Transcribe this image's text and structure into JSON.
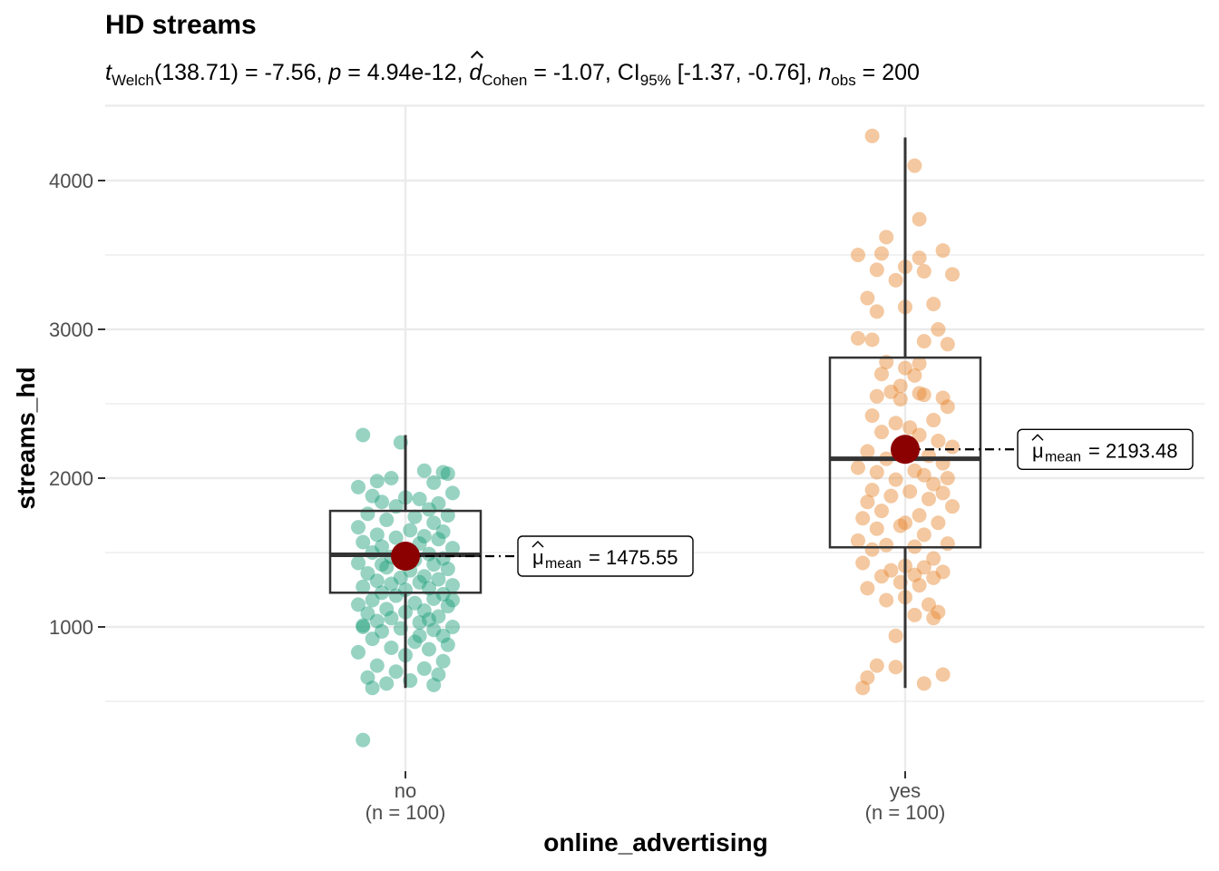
{
  "chart_data": {
    "type": "box",
    "title": "HD streams",
    "subtitle": {
      "t_label": "t",
      "t_sub": "Welch",
      "t_rest": "(138.71) = -7.56, ",
      "p_label": "p",
      "p_rest": " = 4.94e-12, ",
      "d_label": "d",
      "d_sub": "Cohen",
      "d_rest": " = -1.07, CI",
      "ci_sub": "95%",
      "ci_rest": " [-1.37, -0.76], ",
      "n_label": "n",
      "n_sub": "obs",
      "n_rest": " = 200"
    },
    "xlabel": "online_advertising",
    "ylabel": "streams_hd",
    "ylim": [
      0,
      4400
    ],
    "yticks": [
      1000,
      2000,
      3000,
      4000
    ],
    "categories": [
      "no",
      "yes"
    ],
    "category_counts": [
      "(n = 100)",
      "(n = 100)"
    ],
    "colors": {
      "no": "#1b9e77",
      "yes": "#e7852d",
      "mean_point": "#8b0000"
    },
    "groups": [
      {
        "name": "no",
        "box": {
          "q1": 1230,
          "median": 1485,
          "q3": 1780,
          "whisker_low": 590,
          "whisker_high": 2290
        },
        "mean": 1475.55,
        "mean_text": "= 1475.55",
        "points": [
          [
            -0.09,
            2290
          ],
          [
            -0.01,
            2240
          ],
          [
            0.08,
            2040
          ],
          [
            0.04,
            2050
          ],
          [
            0.09,
            2030
          ],
          [
            -0.03,
            2000
          ],
          [
            -0.06,
            1980
          ],
          [
            0.06,
            1970
          ],
          [
            -0.1,
            1940
          ],
          [
            0.1,
            1900
          ],
          [
            -0.07,
            1880
          ],
          [
            0.0,
            1870
          ],
          [
            0.03,
            1860
          ],
          [
            -0.05,
            1840
          ],
          [
            0.07,
            1830
          ],
          [
            -0.02,
            1810
          ],
          [
            0.05,
            1790
          ],
          [
            -0.08,
            1760
          ],
          [
            0.09,
            1750
          ],
          [
            0.02,
            1740
          ],
          [
            -0.04,
            1720
          ],
          [
            0.06,
            1700
          ],
          [
            -0.1,
            1670
          ],
          [
            0.01,
            1650
          ],
          [
            0.08,
            1640
          ],
          [
            -0.06,
            1620
          ],
          [
            0.04,
            1610
          ],
          [
            -0.02,
            1600
          ],
          [
            0.07,
            1590
          ],
          [
            -0.09,
            1570
          ],
          [
            0.03,
            1560
          ],
          [
            -0.05,
            1540
          ],
          [
            0.1,
            1530
          ],
          [
            0.0,
            1520
          ],
          [
            -0.07,
            1500
          ],
          [
            0.05,
            1490
          ],
          [
            -0.03,
            1470
          ],
          [
            0.08,
            1460
          ],
          [
            0.02,
            1450
          ],
          [
            -0.1,
            1430
          ],
          [
            0.06,
            1420
          ],
          [
            -0.04,
            1400
          ],
          [
            0.09,
            1390
          ],
          [
            0.01,
            1380
          ],
          [
            -0.08,
            1360
          ],
          [
            0.04,
            1340
          ],
          [
            -0.01,
            1330
          ],
          [
            0.07,
            1320
          ],
          [
            -0.06,
            1310
          ],
          [
            0.03,
            1300
          ],
          [
            -0.03,
            1290
          ],
          [
            0.1,
            1280
          ],
          [
            -0.09,
            1270
          ],
          [
            0.05,
            1260
          ],
          [
            0.0,
            1250
          ],
          [
            -0.05,
            1230
          ],
          [
            0.08,
            1220
          ],
          [
            -0.02,
            1210
          ],
          [
            0.06,
            1190
          ],
          [
            -0.07,
            1180
          ],
          [
            0.02,
            1160
          ],
          [
            -0.1,
            1150
          ],
          [
            0.09,
            1140
          ],
          [
            -0.04,
            1120
          ],
          [
            0.04,
            1110
          ],
          [
            0.0,
            1100
          ],
          [
            -0.08,
            1090
          ],
          [
            0.07,
            1070
          ],
          [
            -0.03,
            1060
          ],
          [
            0.05,
            1050
          ],
          [
            -0.06,
            1040
          ],
          [
            0.03,
            1030
          ],
          [
            -0.09,
            1010
          ],
          [
            0.1,
            1000
          ],
          [
            -0.01,
            990
          ],
          [
            0.06,
            980
          ],
          [
            -0.05,
            970
          ],
          [
            0.08,
            940
          ],
          [
            -0.07,
            920
          ],
          [
            0.02,
            900
          ],
          [
            0.09,
            880
          ],
          [
            -0.03,
            860
          ],
          [
            0.05,
            850
          ],
          [
            -0.1,
            830
          ],
          [
            0.0,
            810
          ],
          [
            0.08,
            770
          ],
          [
            -0.06,
            740
          ],
          [
            0.04,
            720
          ],
          [
            -0.02,
            700
          ],
          [
            0.07,
            680
          ],
          [
            -0.08,
            660
          ],
          [
            0.01,
            640
          ],
          [
            -0.04,
            620
          ],
          [
            0.06,
            610
          ],
          [
            -0.07,
            590
          ],
          [
            0.03,
            940
          ],
          [
            -0.09,
            1000
          ],
          [
            0.1,
            1180
          ],
          [
            -0.05,
            1420
          ],
          [
            -0.09,
            240
          ]
        ]
      },
      {
        "name": "yes",
        "box": {
          "q1": 1535,
          "median": 2130,
          "q3": 2810,
          "whisker_low": 590,
          "whisker_high": 4290
        },
        "mean": 2193.48,
        "mean_text": "= 2193.48",
        "points": [
          [
            -0.07,
            4300
          ],
          [
            0.02,
            4100
          ],
          [
            0.03,
            3740
          ],
          [
            -0.04,
            3620
          ],
          [
            0.08,
            3530
          ],
          [
            -0.05,
            3510
          ],
          [
            -0.1,
            3500
          ],
          [
            0.03,
            3480
          ],
          [
            0.0,
            3420
          ],
          [
            -0.06,
            3400
          ],
          [
            0.04,
            3390
          ],
          [
            0.1,
            3370
          ],
          [
            -0.02,
            3330
          ],
          [
            -0.08,
            3210
          ],
          [
            0.06,
            3170
          ],
          [
            0.0,
            3150
          ],
          [
            -0.06,
            3120
          ],
          [
            0.07,
            3000
          ],
          [
            0.09,
            2900
          ],
          [
            -0.1,
            2940
          ],
          [
            -0.07,
            2930
          ],
          [
            0.04,
            2920
          ],
          [
            -0.04,
            2780
          ],
          [
            0.0,
            2740
          ],
          [
            0.03,
            2770
          ],
          [
            -0.05,
            2700
          ],
          [
            0.02,
            2690
          ],
          [
            -0.01,
            2620
          ],
          [
            0.04,
            2560
          ],
          [
            0.08,
            2540
          ],
          [
            -0.06,
            2550
          ],
          [
            -0.01,
            2530
          ],
          [
            -0.03,
            2580
          ],
          [
            0.03,
            2570
          ],
          [
            0.09,
            2480
          ],
          [
            -0.07,
            2420
          ],
          [
            0.06,
            2390
          ],
          [
            -0.02,
            2370
          ],
          [
            0.01,
            2340
          ],
          [
            -0.05,
            2310
          ],
          [
            0.03,
            2290
          ],
          [
            0.07,
            2250
          ],
          [
            0.1,
            2210
          ],
          [
            -0.08,
            2180
          ],
          [
            0.0,
            2170
          ],
          [
            0.05,
            2150
          ],
          [
            -0.04,
            2130
          ],
          [
            0.08,
            2100
          ],
          [
            -0.1,
            2070
          ],
          [
            0.02,
            2050
          ],
          [
            -0.06,
            2040
          ],
          [
            0.04,
            2020
          ],
          [
            0.09,
            2000
          ],
          [
            -0.02,
            1990
          ],
          [
            0.06,
            1960
          ],
          [
            -0.07,
            1920
          ],
          [
            0.01,
            1910
          ],
          [
            0.08,
            1900
          ],
          [
            -0.03,
            1880
          ],
          [
            0.05,
            1860
          ],
          [
            -0.08,
            1840
          ],
          [
            0.1,
            1810
          ],
          [
            -0.05,
            1780
          ],
          [
            0.03,
            1750
          ],
          [
            -0.09,
            1730
          ],
          [
            0.07,
            1700
          ],
          [
            -0.01,
            1680
          ],
          [
            -0.06,
            1660
          ],
          [
            0.04,
            1620
          ],
          [
            -0.1,
            1580
          ],
          [
            0.09,
            1560
          ],
          [
            -0.04,
            1550
          ],
          [
            0.02,
            1540
          ],
          [
            -0.07,
            1520
          ],
          [
            0.06,
            1460
          ],
          [
            -0.09,
            1430
          ],
          [
            0.0,
            1410
          ],
          [
            0.04,
            1400
          ],
          [
            -0.03,
            1380
          ],
          [
            0.08,
            1370
          ],
          [
            0.02,
            1350
          ],
          [
            -0.05,
            1340
          ],
          [
            0.06,
            1330
          ],
          [
            -0.01,
            1300
          ],
          [
            0.03,
            1280
          ],
          [
            -0.08,
            1260
          ],
          [
            0.0,
            1200
          ],
          [
            -0.04,
            1180
          ],
          [
            0.05,
            1150
          ],
          [
            0.07,
            1100
          ],
          [
            0.02,
            1080
          ],
          [
            0.06,
            1060
          ],
          [
            -0.02,
            940
          ],
          [
            -0.06,
            740
          ],
          [
            -0.02,
            730
          ],
          [
            0.08,
            680
          ],
          [
            -0.08,
            660
          ],
          [
            0.04,
            620
          ],
          [
            -0.09,
            590
          ],
          [
            0.0,
            1700
          ]
        ]
      }
    ]
  }
}
